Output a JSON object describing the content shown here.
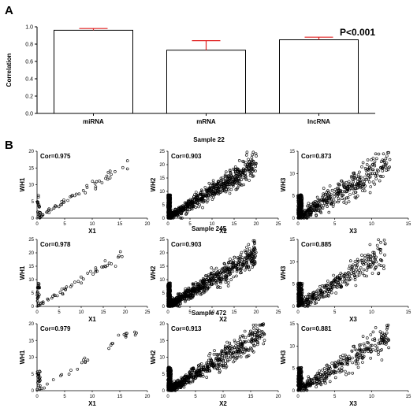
{
  "panels": {
    "a": "A",
    "b": "B"
  },
  "chart_data": [
    {
      "type": "bar",
      "panel": "A",
      "categories": [
        "miRNA",
        "mRNA",
        "lncRNA"
      ],
      "values": [
        0.96,
        0.73,
        0.85
      ],
      "errors": [
        0.02,
        0.11,
        0.03
      ],
      "ylabel": "Correlation",
      "ylim": [
        0,
        1.0
      ],
      "yticks": [
        "0.0",
        "0.2",
        "0.4",
        "0.6",
        "0.8",
        "1.0"
      ],
      "annotation": "P<0.001",
      "bar_fill": "#ffffff",
      "bar_stroke": "#000000",
      "errorbar_color": "#e02020"
    },
    {
      "type": "scatter",
      "panel": "B",
      "rows": [
        {
          "sample": "Sample 22",
          "plots": [
            {
              "xlabel": "X1",
              "ylabel": "WH1",
              "cor": "Cor=0.975",
              "xlim": [
                0,
                20
              ],
              "ylim": [
                0,
                20
              ],
              "xticks": [
                "0",
                "5",
                "10",
                "15",
                "20"
              ],
              "yticks": [
                "0",
                "5",
                "10",
                "15",
                "20"
              ],
              "n": 70,
              "noise": 0.7,
              "xmax": 17.5
            },
            {
              "xlabel": "X2",
              "ylabel": "WH2",
              "cor": "Cor=0.903",
              "xlim": [
                0,
                25
              ],
              "ylim": [
                0,
                25
              ],
              "xticks": [
                "0",
                "5",
                "10",
                "15",
                "20",
                "25"
              ],
              "yticks": [
                "0",
                "5",
                "10",
                "15",
                "20",
                "25"
              ],
              "n": 900,
              "noise": 1.8,
              "xmax": 20
            },
            {
              "xlabel": "X3",
              "ylabel": "WH3",
              "cor": "Cor=0.873",
              "xlim": [
                0,
                15
              ],
              "ylim": [
                0,
                15
              ],
              "xticks": [
                "0",
                "5",
                "10",
                "15"
              ],
              "yticks": [
                "0",
                "5",
                "10",
                "15"
              ],
              "n": 600,
              "noise": 1.4,
              "xmax": 12.5
            }
          ]
        },
        {
          "sample": "Sample 245",
          "plots": [
            {
              "xlabel": "X1",
              "ylabel": "WH1",
              "cor": "Cor=0.978",
              "xlim": [
                0,
                25
              ],
              "ylim": [
                0,
                25
              ],
              "xticks": [
                "0",
                "5",
                "10",
                "15",
                "20",
                "25"
              ],
              "yticks": [
                "0",
                "5",
                "10",
                "15",
                "20",
                "25"
              ],
              "n": 70,
              "noise": 0.8,
              "xmax": 19.5
            },
            {
              "xlabel": "X2",
              "ylabel": "WH2",
              "cor": "Cor=0.903",
              "xlim": [
                0,
                25
              ],
              "ylim": [
                0,
                25
              ],
              "xticks": [
                "0",
                "5",
                "10",
                "15",
                "20",
                "25"
              ],
              "yticks": [
                "0",
                "5",
                "10",
                "15",
                "20",
                "25"
              ],
              "n": 900,
              "noise": 1.8,
              "xmax": 20
            },
            {
              "xlabel": "X3",
              "ylabel": "WH3",
              "cor": "Cor=0.885",
              "xlim": [
                0,
                15
              ],
              "ylim": [
                0,
                15
              ],
              "xticks": [
                "0",
                "5",
                "10",
                "15"
              ],
              "yticks": [
                "0",
                "5",
                "10",
                "15"
              ],
              "n": 450,
              "noise": 1.3,
              "xmax": 12
            }
          ]
        },
        {
          "sample": "Sample 472",
          "plots": [
            {
              "xlabel": "X1",
              "ylabel": "WH1",
              "cor": "Cor=0.979",
              "xlim": [
                0,
                20
              ],
              "ylim": [
                0,
                20
              ],
              "xticks": [
                "0",
                "5",
                "10",
                "15",
                "20"
              ],
              "yticks": [
                "0",
                "5",
                "10",
                "15",
                "20"
              ],
              "n": 50,
              "noise": 0.7,
              "xmax": 18
            },
            {
              "xlabel": "X2",
              "ylabel": "WH2",
              "cor": "Cor=0.913",
              "xlim": [
                0,
                20
              ],
              "ylim": [
                0,
                20
              ],
              "xticks": [
                "0",
                "5",
                "10",
                "15",
                "20"
              ],
              "yticks": [
                "0",
                "5",
                "10",
                "15",
                "20"
              ],
              "n": 800,
              "noise": 1.5,
              "xmax": 17.5
            },
            {
              "xlabel": "X3",
              "ylabel": "WH3",
              "cor": "Cor=0.881",
              "xlim": [
                0,
                15
              ],
              "ylim": [
                0,
                15
              ],
              "xticks": [
                "0",
                "5",
                "10",
                "15"
              ],
              "yticks": [
                "0",
                "5",
                "10",
                "15"
              ],
              "n": 450,
              "noise": 1.3,
              "xmax": 12.5
            }
          ]
        }
      ]
    }
  ]
}
